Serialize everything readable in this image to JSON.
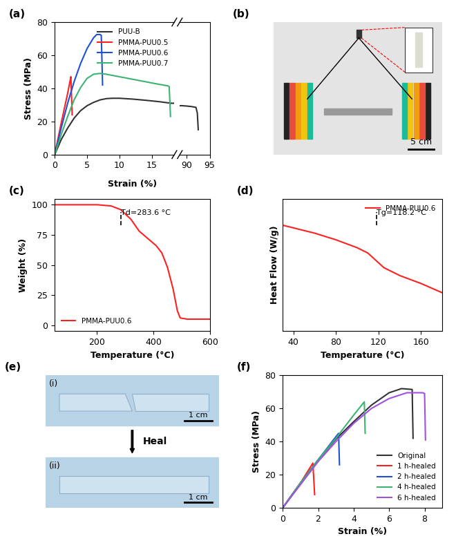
{
  "chart_data": [
    {
      "type": "line_broken",
      "panel": "(a)",
      "x_label": "Strain (%)",
      "y_label": "Stress (MPa)",
      "x_segments": [
        {
          "xlim": [
            0,
            18.5
          ],
          "xticks": [
            0,
            5,
            10,
            15
          ]
        },
        {
          "xlim": [
            88.5,
            95
          ],
          "xticks": [
            90,
            95
          ]
        }
      ],
      "ylim": [
        0,
        80
      ],
      "yticks": [
        0,
        20,
        40,
        60,
        80
      ],
      "legend": "upper right",
      "series": [
        {
          "name": "PUU-B",
          "color": "#333333",
          "x": [
            0,
            1,
            2,
            3,
            4,
            5,
            6,
            7,
            8,
            9,
            10,
            12,
            14,
            16,
            18,
            89,
            90,
            91,
            92,
            92.3,
            92.5
          ],
          "values": [
            0,
            9,
            16,
            22,
            26.5,
            29.5,
            31.5,
            33,
            33.8,
            34,
            34,
            33.5,
            32.8,
            32,
            31,
            29.5,
            29.3,
            29,
            28.5,
            25,
            15
          ]
        },
        {
          "name": "PMMA-PUU0.5",
          "color": "#ff2020",
          "x": [
            0,
            0.5,
            1,
            1.5,
            2,
            2.4,
            2.5,
            2.6,
            2.7
          ],
          "values": [
            0,
            9.5,
            19,
            28,
            37,
            45,
            47,
            35,
            24
          ]
        },
        {
          "name": "PMMA-PUU0.6",
          "color": "#1f4fd6",
          "x": [
            0,
            1,
            2,
            3,
            4,
            5,
            6,
            6.5,
            7,
            7.2,
            7.4
          ],
          "values": [
            0,
            16,
            31,
            44,
            55,
            64,
            70.5,
            72.5,
            72.5,
            72,
            42
          ]
        },
        {
          "name": "PMMA-PUU0.7",
          "color": "#3cb371",
          "x": [
            0,
            1,
            2,
            3,
            4,
            5,
            6,
            7,
            8,
            10,
            12,
            14,
            16,
            17.5,
            17.7,
            17.9
          ],
          "values": [
            0,
            12,
            23,
            33,
            40.5,
            46,
            48.5,
            49,
            48.5,
            47,
            45.5,
            44,
            42.5,
            41.5,
            41,
            23
          ]
        }
      ]
    },
    {
      "type": "image",
      "panel": "(b)",
      "scale_bar": "5 cm"
    },
    {
      "type": "line",
      "panel": "(c)",
      "x_label": "Temperature (°C)",
      "y_label": "Weight (%)",
      "xlim": [
        50,
        600
      ],
      "xticks": [
        200,
        400,
        600
      ],
      "ylim": [
        -5,
        105
      ],
      "yticks": [
        0,
        25,
        50,
        75,
        100
      ],
      "legend": "lower left",
      "annotations": [
        {
          "text": "Td=283.6 °C",
          "x": 283.6
        }
      ],
      "series": [
        {
          "name": "PMMA-PUU0.6",
          "color": "#ff2020",
          "x": [
            50,
            100,
            150,
            200,
            250,
            283.6,
            320,
            350,
            380,
            410,
            430,
            450,
            470,
            485,
            495,
            520,
            600
          ],
          "values": [
            100,
            100,
            100,
            100,
            99,
            96,
            88,
            78,
            72,
            66,
            60,
            48,
            30,
            12,
            6,
            5,
            5
          ]
        }
      ]
    },
    {
      "type": "line",
      "panel": "(d)",
      "x_label": "Temperature (°C)",
      "y_label": "Heat Flow (W/g)",
      "xlim": [
        30,
        180
      ],
      "xticks": [
        40,
        80,
        120,
        160
      ],
      "ylim": [
        0,
        1
      ],
      "tick_labels": "x",
      "legend": "upper right",
      "annotations": [
        {
          "text": "Tg=118.2 °C",
          "x": 118.2
        }
      ],
      "series": [
        {
          "name": "PMMA-PUU0.6",
          "color": "#ff2020",
          "x": [
            30,
            60,
            80,
            100,
            110,
            118.2,
            125,
            140,
            160,
            180
          ],
          "values": [
            0.8,
            0.74,
            0.69,
            0.63,
            0.59,
            0.53,
            0.48,
            0.42,
            0.36,
            0.29
          ]
        }
      ]
    },
    {
      "type": "image_pair",
      "panel": "(e)",
      "parts": [
        "(i)",
        "(ii)"
      ],
      "arrow_text": "Heal",
      "scale_bar": "1 cm"
    },
    {
      "type": "line",
      "panel": "(f)",
      "x_label": "Strain (%)",
      "y_label": "Stress (MPa)",
      "xlim": [
        0,
        9
      ],
      "xticks": [
        0,
        2,
        4,
        6,
        8
      ],
      "ylim": [
        0,
        80
      ],
      "yticks": [
        0,
        20,
        40,
        60,
        80
      ],
      "legend": "lower right",
      "series": [
        {
          "name": "Original",
          "color": "#333333",
          "x": [
            0,
            1,
            2,
            3,
            4,
            5,
            6,
            6.7,
            7.3,
            7.35
          ],
          "values": [
            0,
            15,
            29,
            41.5,
            52,
            62,
            69.5,
            72,
            71.5,
            42
          ]
        },
        {
          "name": "1 h-healed",
          "color": "#ff2020",
          "x": [
            0,
            1,
            1.7,
            1.8
          ],
          "values": [
            0,
            15,
            27,
            8
          ]
        },
        {
          "name": "2 h-healed",
          "color": "#1f4fd6",
          "x": [
            0,
            1,
            2,
            3,
            3.15,
            3.2
          ],
          "values": [
            0,
            15,
            29,
            43,
            45,
            26
          ]
        },
        {
          "name": "4 h-healed",
          "color": "#3cb371",
          "x": [
            0,
            1,
            2,
            3,
            4,
            4.6,
            4.65
          ],
          "values": [
            0,
            15,
            29,
            42,
            56,
            64,
            45
          ]
        },
        {
          "name": "6 h-healed",
          "color": "#a050e0",
          "x": [
            0,
            1,
            2,
            3,
            4,
            5,
            6,
            7,
            7.9,
            8.0,
            8.05
          ],
          "values": [
            0,
            14,
            28,
            40,
            51,
            60,
            66,
            69.5,
            69.5,
            69,
            41
          ]
        }
      ]
    }
  ]
}
